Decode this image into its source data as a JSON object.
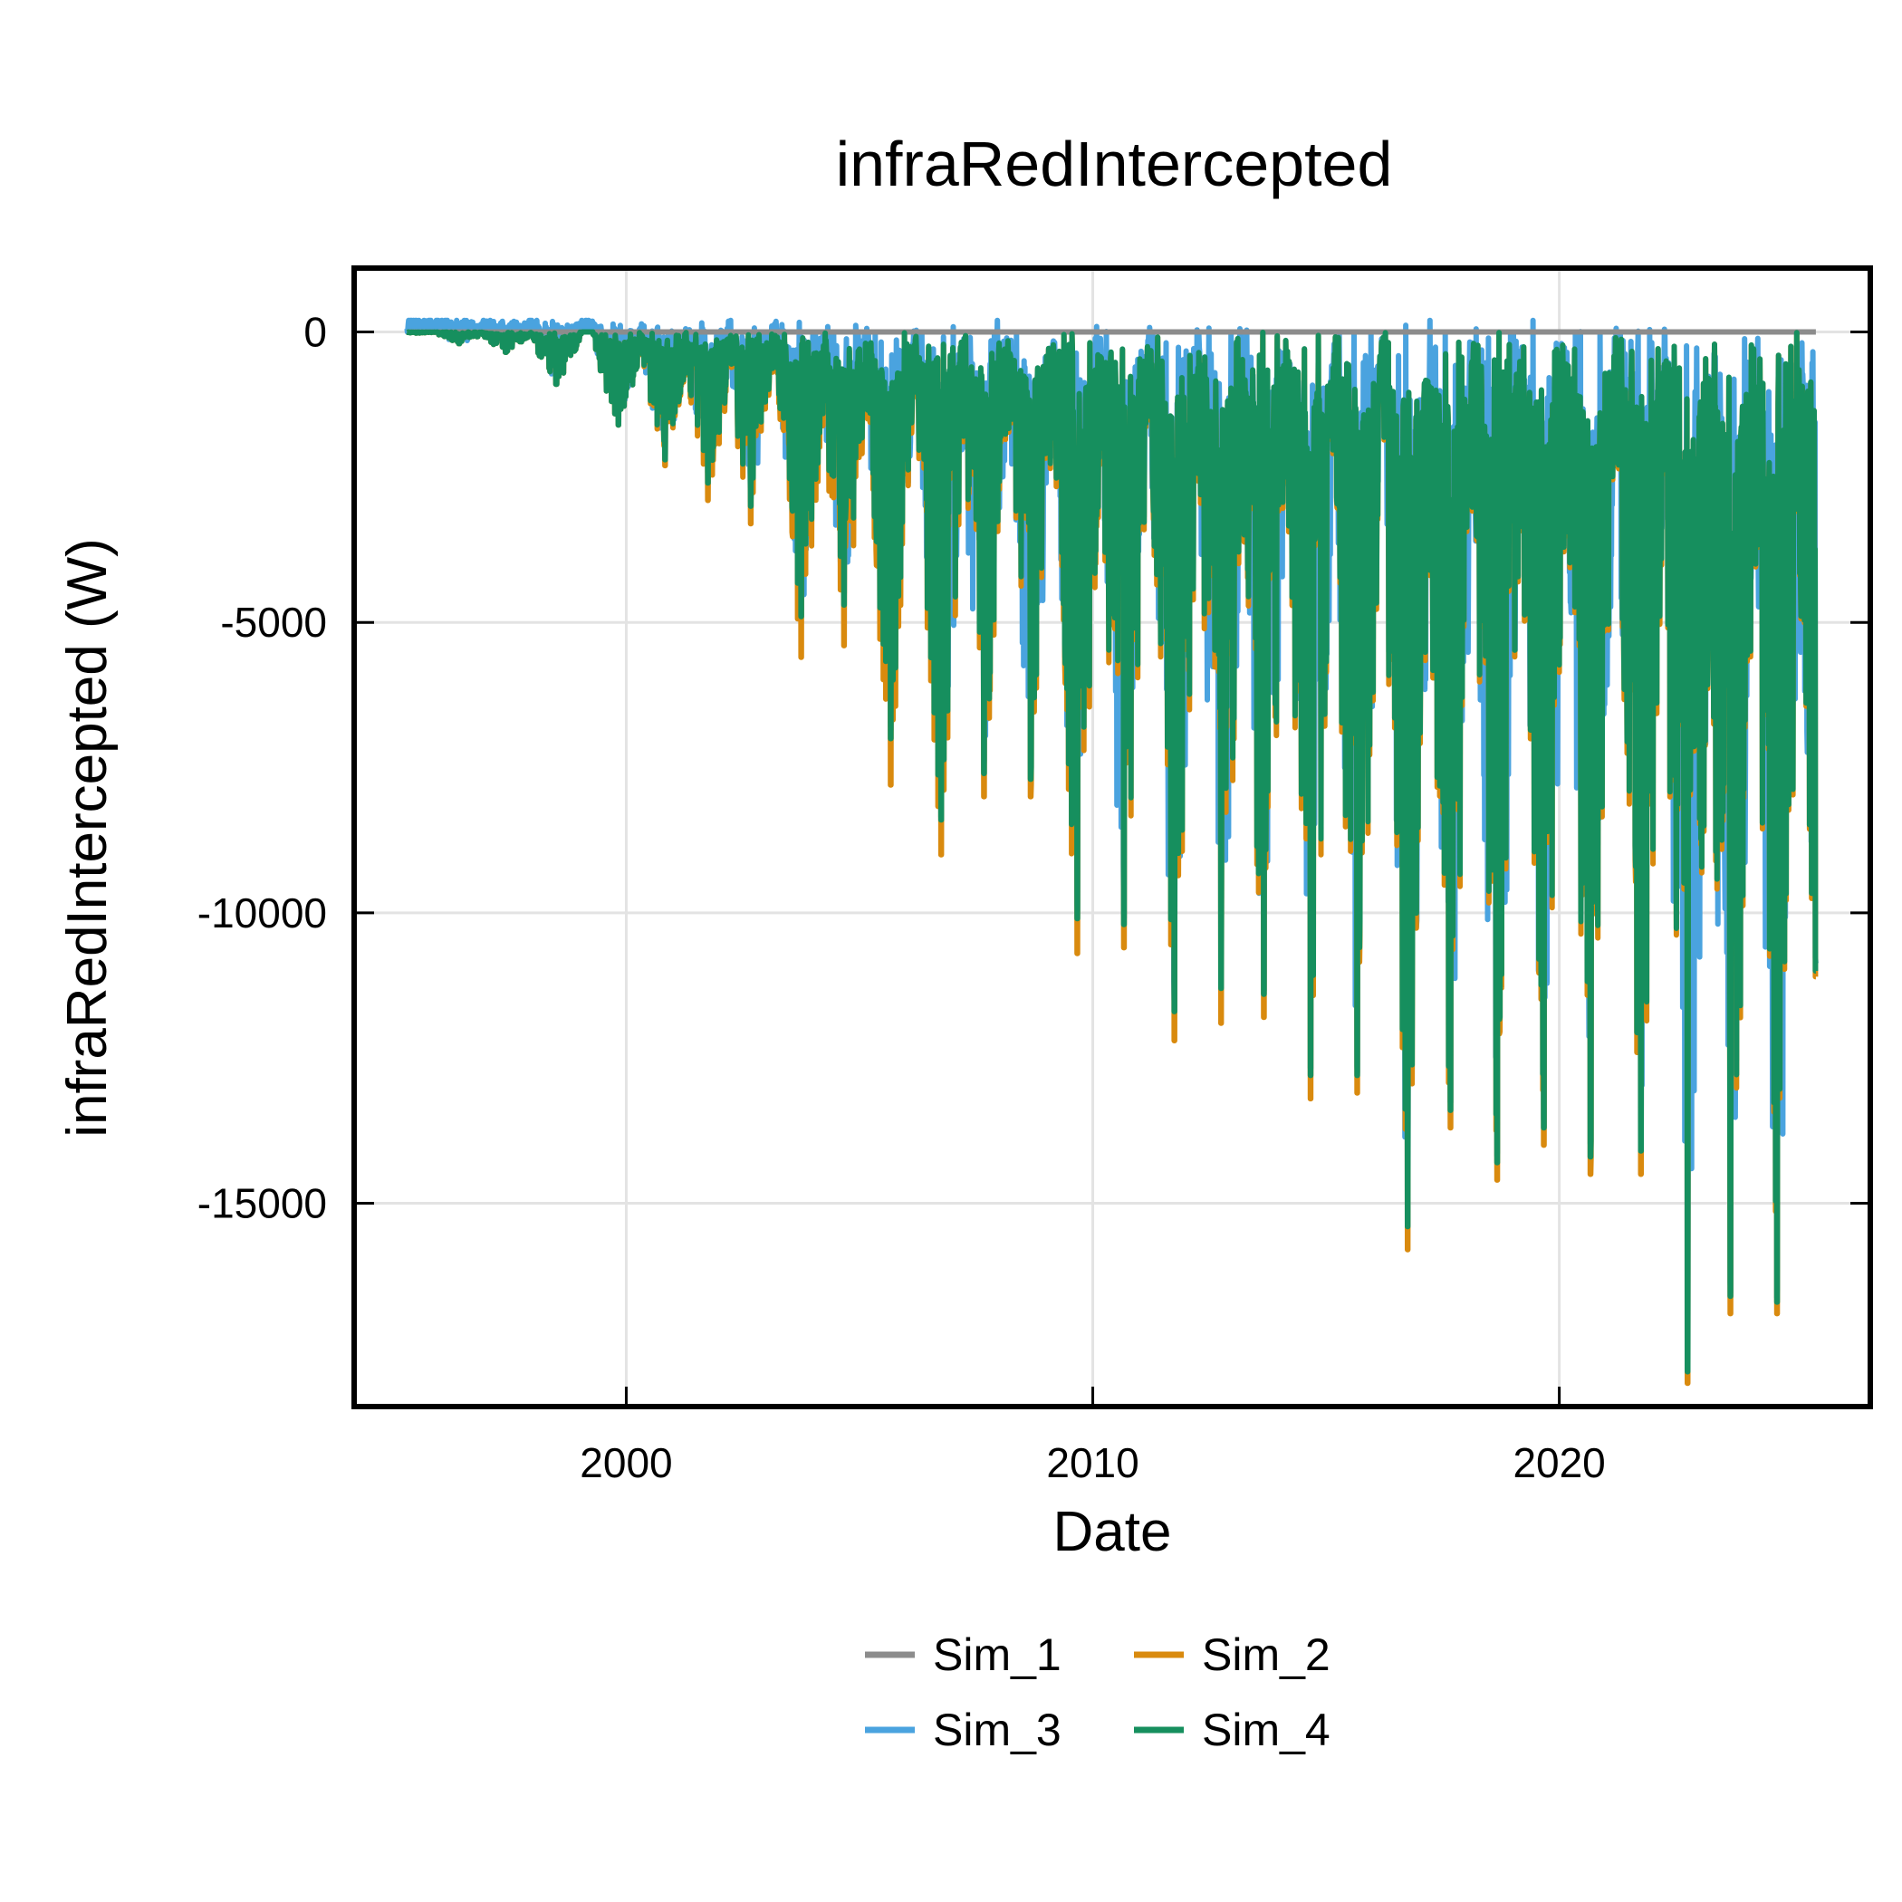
{
  "chart_data": {
    "type": "line",
    "title": "infraRedIntercepted",
    "xlabel": "Date",
    "ylabel": "infraRedIntercepted (W)",
    "xlim": [
      "1994-03-01",
      "2026-09-01"
    ],
    "ylim": [
      -18500,
      1100
    ],
    "x_ticks": [
      "2000",
      "2010",
      "2020"
    ],
    "y_ticks": [
      0,
      -5000,
      -10000,
      -15000
    ],
    "y_tick_labels": [
      "0",
      "-5000",
      "-10000",
      "-15000"
    ],
    "grid": true,
    "legend_position": "bottom",
    "colors": {
      "Sim_1": "#8c8c8c",
      "Sim_2": "#d98a0e",
      "Sim_3": "#4aa3df",
      "Sim_4": "#168f5e"
    },
    "series": [
      {
        "name": "Sim_1"
      },
      {
        "name": "Sim_2"
      },
      {
        "name": "Sim_3"
      },
      {
        "name": "Sim_4"
      }
    ],
    "annual_minima": [
      {
        "date": "1995-07-01",
        "Sim_2": -20,
        "Sim_3": -20,
        "Sim_4": -20
      },
      {
        "date": "1996-06-01",
        "Sim_2": -200,
        "Sim_3": -200,
        "Sim_4": -200
      },
      {
        "date": "1997-06-01",
        "Sim_2": -350,
        "Sim_3": -350,
        "Sim_4": -350
      },
      {
        "date": "1998-07-01",
        "Sim_2": -900,
        "Sim_3": -900,
        "Sim_4": -900
      },
      {
        "date": "1999-11-01",
        "Sim_2": -1600,
        "Sim_3": -1600,
        "Sim_4": -1600
      },
      {
        "date": "2000-11-01",
        "Sim_2": -2300,
        "Sim_3": -2200,
        "Sim_4": -2200
      },
      {
        "date": "2001-10-01",
        "Sim_2": -2900,
        "Sim_3": -2600,
        "Sim_4": -2600
      },
      {
        "date": "2002-09-01",
        "Sim_2": -3300,
        "Sim_3": -3000,
        "Sim_4": -3000
      },
      {
        "date": "2003-10-01",
        "Sim_2": -5600,
        "Sim_3": -4900,
        "Sim_4": -4900
      },
      {
        "date": "2004-09-01",
        "Sim_2": -5400,
        "Sim_3": -4700,
        "Sim_4": -4700
      },
      {
        "date": "2005-09-01",
        "Sim_2": -7800,
        "Sim_3": -7000,
        "Sim_4": -7000
      },
      {
        "date": "2006-10-01",
        "Sim_2": -9000,
        "Sim_3": -8400,
        "Sim_4": -8400
      },
      {
        "date": "2007-09-01",
        "Sim_2": -8000,
        "Sim_3": -7600,
        "Sim_4": -7600
      },
      {
        "date": "2008-09-01",
        "Sim_2": -8000,
        "Sim_3": -7700,
        "Sim_4": -7700
      },
      {
        "date": "2009-09-01",
        "Sim_2": -10700,
        "Sim_3": -10100,
        "Sim_4": -10100
      },
      {
        "date": "2010-09-01",
        "Sim_2": -10600,
        "Sim_3": -10200,
        "Sim_4": -10200
      },
      {
        "date": "2011-10-01",
        "Sim_2": -12200,
        "Sim_3": -11700,
        "Sim_4": -11700
      },
      {
        "date": "2012-10-01",
        "Sim_2": -11900,
        "Sim_3": -11300,
        "Sim_4": -11300
      },
      {
        "date": "2013-09-01",
        "Sim_2": -11800,
        "Sim_3": -11400,
        "Sim_4": -11400
      },
      {
        "date": "2014-09-01",
        "Sim_2": -13200,
        "Sim_3": -12800,
        "Sim_4": -12800
      },
      {
        "date": "2015-09-01",
        "Sim_2": -13100,
        "Sim_3": -12800,
        "Sim_4": -12800
      },
      {
        "date": "2016-10-01",
        "Sim_2": -15800,
        "Sim_3": -15400,
        "Sim_4": -15400
      },
      {
        "date": "2017-09-01",
        "Sim_2": -13700,
        "Sim_3": -13400,
        "Sim_4": -13400
      },
      {
        "date": "2018-09-01",
        "Sim_2": -14600,
        "Sim_3": -14300,
        "Sim_4": -14300
      },
      {
        "date": "2019-09-01",
        "Sim_2": -14000,
        "Sim_3": -13700,
        "Sim_4": -13700
      },
      {
        "date": "2020-09-01",
        "Sim_2": -14500,
        "Sim_3": -14200,
        "Sim_4": -14200
      },
      {
        "date": "2021-10-01",
        "Sim_2": -14500,
        "Sim_3": -14100,
        "Sim_4": -14100
      },
      {
        "date": "2022-10-01",
        "Sim_2": -18100,
        "Sim_3": -17900,
        "Sim_4": -17900
      },
      {
        "date": "2023-09-01",
        "Sim_2": -16900,
        "Sim_3": -16600,
        "Sim_4": -16600
      },
      {
        "date": "2024-09-01",
        "Sim_2": -16900,
        "Sim_3": -16700,
        "Sim_4": -16700
      },
      {
        "date": "2025-07-01",
        "Sim_2": -11100,
        "Sim_3": -11000,
        "Sim_4": -11000
      }
    ],
    "series_end": "2025-07-01"
  }
}
